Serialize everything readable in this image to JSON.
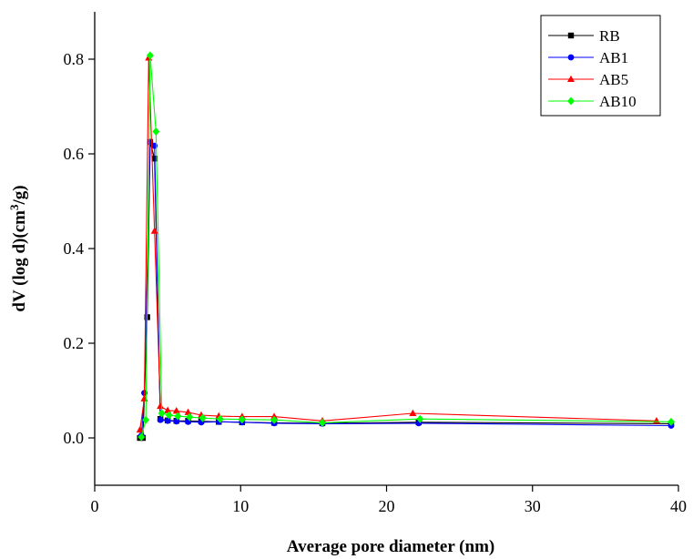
{
  "chart_data": {
    "type": "line",
    "title": "",
    "xlabel": "Average pore diameter (nm)",
    "ylabel_parts": [
      "dV (log d)(cm",
      "3",
      "/g)"
    ],
    "xlim": [
      0,
      40
    ],
    "ylim": [
      -0.1,
      0.9
    ],
    "xticks": [
      0,
      10,
      20,
      30,
      40
    ],
    "yticks": [
      0.0,
      0.2,
      0.4,
      0.6,
      0.8
    ],
    "ytick_labels": [
      "0.0",
      "0.2",
      "0.4",
      "0.6",
      "0.8"
    ],
    "grid": false,
    "legend_position": "top-right",
    "series": [
      {
        "name": "RB",
        "color": "#000000",
        "marker": "square",
        "x": [
          3.1,
          3.3,
          3.6,
          3.8,
          4.1,
          4.5,
          5.0,
          5.6,
          6.4,
          7.3,
          8.5,
          10.1,
          12.3,
          15.6,
          22.2,
          39.5
        ],
        "y": [
          0.0,
          0.0,
          0.255,
          0.625,
          0.59,
          0.04,
          0.037,
          0.036,
          0.036,
          0.035,
          0.034,
          0.033,
          0.032,
          0.031,
          0.033,
          0.03
        ]
      },
      {
        "name": "AB1",
        "color": "#0000ff",
        "marker": "circle",
        "x": [
          3.2,
          3.4,
          3.8,
          4.1,
          4.5,
          5.0,
          5.6,
          6.4,
          7.3,
          8.5,
          10.1,
          12.3,
          15.6,
          22.2,
          39.5
        ],
        "y": [
          0.005,
          0.095,
          0.625,
          0.617,
          0.038,
          0.036,
          0.035,
          0.034,
          0.033,
          0.034,
          0.033,
          0.031,
          0.03,
          0.031,
          0.026
        ]
      },
      {
        "name": "AB5",
        "color": "#ff0000",
        "marker": "triangle",
        "x": [
          3.1,
          3.4,
          3.7,
          4.1,
          4.5,
          5.0,
          5.6,
          6.4,
          7.3,
          8.5,
          10.1,
          12.3,
          15.6,
          21.8,
          38.5
        ],
        "y": [
          0.017,
          0.083,
          0.803,
          0.437,
          0.067,
          0.058,
          0.057,
          0.054,
          0.048,
          0.046,
          0.045,
          0.045,
          0.036,
          0.052,
          0.036
        ]
      },
      {
        "name": "AB10",
        "color": "#00ff00",
        "marker": "diamond",
        "x": [
          3.2,
          3.5,
          3.8,
          4.2,
          4.6,
          5.1,
          5.7,
          6.5,
          7.4,
          8.6,
          10.1,
          12.3,
          15.6,
          22.3,
          39.5
        ],
        "y": [
          0.002,
          0.038,
          0.808,
          0.647,
          0.052,
          0.048,
          0.046,
          0.044,
          0.042,
          0.04,
          0.039,
          0.038,
          0.032,
          0.04,
          0.034
        ]
      }
    ]
  }
}
